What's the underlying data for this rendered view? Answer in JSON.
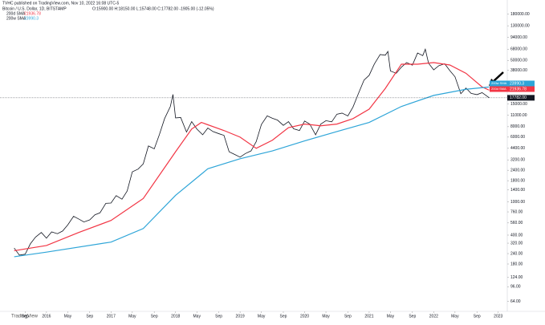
{
  "chart_data": {
    "type": "line",
    "publisher": "TVHC published on TradingView.com, Nov 10, 2022 16:08 UTC-5",
    "symbol": "Bitcoin / U.S. Dollar, 1D, BITSTAMP",
    "ohlc_text": "O:15900.00 H:18150.00 L:15748.00 C:17782.00 -1905.00 (-12.05%)",
    "watermark": "TradingView",
    "log_scale": true,
    "xlim": [
      2015.28,
      2023.14
    ],
    "ylim": [
      52,
      227000
    ],
    "xticks": [
      {
        "value": 2015.67,
        "label": "Sep"
      },
      2016,
      {
        "value": 2016.33,
        "label": "May"
      },
      {
        "value": 2016.67,
        "label": "Sep"
      },
      2017,
      {
        "value": 2017.33,
        "label": "May"
      },
      {
        "value": 2017.67,
        "label": "Sep"
      },
      2018,
      {
        "value": 2018.33,
        "label": "May"
      },
      {
        "value": 2018.67,
        "label": "Sep"
      },
      2019,
      {
        "value": 2019.33,
        "label": "May"
      },
      {
        "value": 2019.67,
        "label": "Sep"
      },
      2020,
      {
        "value": 2020.33,
        "label": "May"
      },
      {
        "value": 2020.67,
        "label": "Sep"
      },
      2021,
      {
        "value": 2021.33,
        "label": "May"
      },
      {
        "value": 2021.67,
        "label": "Sep"
      },
      2022,
      {
        "value": 2022.33,
        "label": "May"
      },
      {
        "value": 2022.67,
        "label": "Sep"
      },
      2023
    ],
    "yticks": [
      {
        "value": 64,
        "label": "64.00"
      },
      {
        "value": 96,
        "label": "96.00"
      },
      {
        "value": 124,
        "label": "124.00"
      },
      {
        "value": 180,
        "label": "180.00"
      },
      {
        "value": 240,
        "label": "240.00"
      },
      {
        "value": 320,
        "label": "320.00"
      },
      {
        "value": 400,
        "label": "400.00"
      },
      {
        "value": 560,
        "label": "560.00"
      },
      {
        "value": 760,
        "label": "760.00"
      },
      {
        "value": 1000,
        "label": "1000.00"
      },
      {
        "value": 1400,
        "label": "1400.00"
      },
      {
        "value": 1800,
        "label": "1800.00"
      },
      {
        "value": 2400,
        "label": "2400.00"
      },
      {
        "value": 3200,
        "label": "3200.00"
      },
      {
        "value": 4400,
        "label": "4400.00"
      },
      {
        "value": 6000,
        "label": "6000.00"
      },
      {
        "value": 8000,
        "label": "8000.00"
      },
      {
        "value": 11000,
        "label": "11000.00"
      },
      {
        "value": 15000,
        "label": "15000.00"
      },
      {
        "value": 38000,
        "label": "38000.00"
      },
      {
        "value": 50000,
        "label": "50000.00"
      },
      {
        "value": 68000,
        "label": "68000.00"
      },
      {
        "value": 94000,
        "label": "94000.00"
      },
      {
        "value": 130000,
        "label": "130000.00"
      },
      {
        "value": 180000,
        "label": "180000.00"
      }
    ],
    "series": [
      {
        "name": "Bitcoin / U.S. Dollar",
        "color": "#131722",
        "last_value": 17782,
        "last_value_label": "17782.00",
        "x": [
          2015.5,
          2015.58,
          2015.67,
          2015.75,
          2015.83,
          2015.92,
          2016,
          2016.08,
          2016.17,
          2016.25,
          2016.33,
          2016.42,
          2016.5,
          2016.58,
          2016.67,
          2016.75,
          2016.83,
          2016.92,
          2017,
          2017.08,
          2017.17,
          2017.25,
          2017.33,
          2017.42,
          2017.5,
          2017.58,
          2017.67,
          2017.75,
          2017.83,
          2017.92,
          2017.96,
          2018,
          2018.08,
          2018.17,
          2018.25,
          2018.33,
          2018.42,
          2018.5,
          2018.58,
          2018.67,
          2018.75,
          2018.83,
          2018.92,
          2019,
          2019.08,
          2019.17,
          2019.25,
          2019.33,
          2019.42,
          2019.5,
          2019.58,
          2019.67,
          2019.75,
          2019.83,
          2019.92,
          2020,
          2020.08,
          2020.17,
          2020.25,
          2020.33,
          2020.42,
          2020.5,
          2020.58,
          2020.67,
          2020.75,
          2020.83,
          2020.92,
          2021,
          2021.08,
          2021.17,
          2021.25,
          2021.29,
          2021.33,
          2021.42,
          2021.5,
          2021.58,
          2021.67,
          2021.75,
          2021.83,
          2021.87,
          2021.92,
          2022,
          2022.08,
          2022.17,
          2022.25,
          2022.33,
          2022.42,
          2022.5,
          2022.58,
          2022.67,
          2022.75,
          2022.86
        ],
        "values": [
          280,
          230,
          236,
          314,
          378,
          430,
          368,
          437,
          416,
          448,
          531,
          673,
          624,
          575,
          609,
          700,
          742,
          963,
          970,
          1190,
          1080,
          1350,
          2300,
          2480,
          2870,
          4700,
          4340,
          6440,
          10000,
          14000,
          19500,
          10200,
          10300,
          6900,
          9200,
          7500,
          6400,
          7700,
          7000,
          6600,
          6300,
          4000,
          3700,
          3450,
          3800,
          4100,
          5300,
          8500,
          10800,
          10100,
          9600,
          8300,
          9200,
          7550,
          7200,
          9350,
          8600,
          6400,
          8600,
          9450,
          9150,
          11300,
          11650,
          10780,
          13800,
          19700,
          29000,
          33100,
          45200,
          58800,
          57700,
          64000,
          37300,
          35000,
          41500,
          47100,
          43800,
          61300,
          57000,
          68000,
          46300,
          38500,
          43200,
          45500,
          37700,
          31800,
          19900,
          23300,
          20050,
          19400,
          20500,
          17782
        ]
      },
      {
        "name": "200d SMA",
        "color": "#f23645",
        "last_value": 21936.78,
        "x": [
          2015.5,
          2016,
          2016.5,
          2017,
          2017.5,
          2018,
          2018.25,
          2018.4,
          2018.75,
          2019,
          2019.25,
          2019.5,
          2019.75,
          2020,
          2020.25,
          2020.5,
          2020.75,
          2021,
          2021.25,
          2021.5,
          2021.75,
          2022,
          2022.25,
          2022.5,
          2022.75,
          2022.86
        ],
        "values": [
          260,
          300,
          430,
          600,
          1100,
          4000,
          7500,
          9000,
          7200,
          6000,
          4400,
          5500,
          7800,
          8600,
          8200,
          8600,
          10000,
          13000,
          23000,
          45000,
          45000,
          47000,
          44000,
          35000,
          24000,
          21936.78
        ]
      },
      {
        "name": "200w SMA",
        "color": "#2ea5d8",
        "last_value": 23990.3,
        "x": [
          2015.5,
          2016,
          2017,
          2017.5,
          2018,
          2018.5,
          2019,
          2019.5,
          2020,
          2020.5,
          2021,
          2021.5,
          2022,
          2022.5,
          2022.86
        ],
        "values": [
          220,
          250,
          330,
          480,
          1200,
          2500,
          3300,
          4100,
          5400,
          7000,
          9000,
          14000,
          19000,
          22500,
          23990.3
        ]
      }
    ]
  }
}
